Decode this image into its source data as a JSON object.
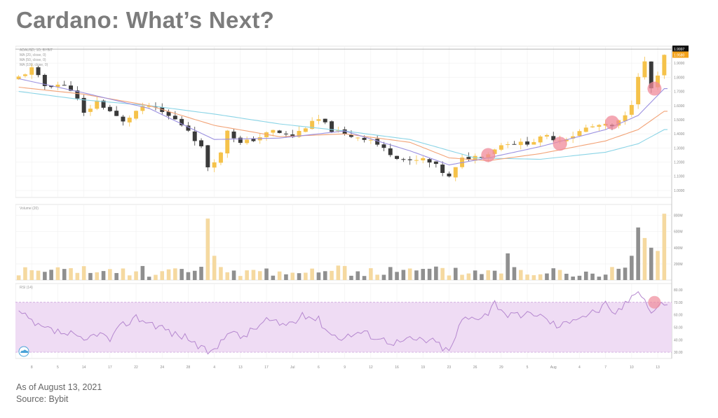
{
  "header": {
    "title": "Cardano: What’s Next?"
  },
  "footer": {
    "as_of": "As of August 13, 2021",
    "source": "Source: Bybit"
  },
  "colors": {
    "candle_up": "#f5c24a",
    "candle_down": "#3a3a3a",
    "ma_fast": "#9b90e0",
    "ma_mid": "#f2a377",
    "ma_slow": "#8ad4e6",
    "rsi_line": "#b587cf",
    "rsi_band": "#efdcf4",
    "highlight": "#f08a9a",
    "vol_up": "#f5d9a0",
    "vol_down": "#8f8f8f",
    "price_tag": "#111111",
    "price_tag_text": "#ffffff",
    "second_tag": "#f3a21b"
  },
  "chart_data": {
    "type": "candlestick",
    "price_panel": {
      "symbol_legend": "ADAUSD, 1D, BYBIT",
      "ma_legends": [
        "MA (20, close, 0)",
        "MA (50, close, 0)",
        "MA (100, close, 0)"
      ],
      "price_labels": [
        {
          "label": "1.9997",
          "value": 1.9997
        },
        {
          "label": "1.9580",
          "value": 1.958
        }
      ],
      "y_tick_values": [
        1.9,
        1.8,
        1.7,
        1.6,
        1.5,
        1.4,
        1.3,
        1.2,
        1.1,
        1.0
      ],
      "ylim": [
        0.95,
        2.02
      ],
      "candles": {
        "count": 100,
        "close_anchors": [
          [
            0,
            1.8
          ],
          [
            2,
            1.86
          ],
          [
            4,
            1.74
          ],
          [
            6,
            1.75
          ],
          [
            8,
            1.72
          ],
          [
            9,
            1.64
          ],
          [
            10,
            1.54
          ],
          [
            12,
            1.63
          ],
          [
            14,
            1.56
          ],
          [
            16,
            1.48
          ],
          [
            18,
            1.56
          ],
          [
            20,
            1.6
          ],
          [
            22,
            1.55
          ],
          [
            24,
            1.5
          ],
          [
            26,
            1.43
          ],
          [
            28,
            1.3
          ],
          [
            29,
            1.17
          ],
          [
            31,
            1.26
          ],
          [
            32,
            1.43
          ],
          [
            34,
            1.33
          ],
          [
            36,
            1.36
          ],
          [
            39,
            1.42
          ],
          [
            42,
            1.38
          ],
          [
            44,
            1.45
          ],
          [
            46,
            1.5
          ],
          [
            48,
            1.43
          ],
          [
            50,
            1.39
          ],
          [
            52,
            1.38
          ],
          [
            54,
            1.36
          ],
          [
            56,
            1.29
          ],
          [
            58,
            1.24
          ],
          [
            60,
            1.2
          ],
          [
            62,
            1.22
          ],
          [
            64,
            1.17
          ],
          [
            66,
            1.09
          ],
          [
            68,
            1.22
          ],
          [
            70,
            1.24
          ],
          [
            72,
            1.26
          ],
          [
            73,
            1.3
          ],
          [
            75,
            1.34
          ],
          [
            77,
            1.33
          ],
          [
            79,
            1.35
          ],
          [
            81,
            1.38
          ],
          [
            83,
            1.36
          ],
          [
            85,
            1.39
          ],
          [
            87,
            1.44
          ],
          [
            89,
            1.46
          ],
          [
            91,
            1.45
          ],
          [
            93,
            1.52
          ],
          [
            94,
            1.62
          ],
          [
            95,
            1.82
          ],
          [
            96,
            1.9
          ],
          [
            97,
            1.72
          ],
          [
            98,
            1.8
          ],
          [
            99,
            1.95
          ]
        ],
        "ma_fast_anchors": [
          [
            0,
            1.79
          ],
          [
            10,
            1.69
          ],
          [
            20,
            1.58
          ],
          [
            30,
            1.36
          ],
          [
            40,
            1.37
          ],
          [
            50,
            1.42
          ],
          [
            60,
            1.28
          ],
          [
            66,
            1.18
          ],
          [
            72,
            1.23
          ],
          [
            80,
            1.31
          ],
          [
            90,
            1.43
          ],
          [
            95,
            1.53
          ],
          [
            99,
            1.72
          ]
        ],
        "ma_mid_anchors": [
          [
            0,
            1.73
          ],
          [
            10,
            1.68
          ],
          [
            20,
            1.6
          ],
          [
            30,
            1.46
          ],
          [
            40,
            1.38
          ],
          [
            50,
            1.4
          ],
          [
            60,
            1.34
          ],
          [
            66,
            1.23
          ],
          [
            72,
            1.21
          ],
          [
            80,
            1.26
          ],
          [
            90,
            1.35
          ],
          [
            95,
            1.43
          ],
          [
            99,
            1.56
          ]
        ],
        "ma_slow_anchors": [
          [
            0,
            1.7
          ],
          [
            10,
            1.64
          ],
          [
            20,
            1.6
          ],
          [
            30,
            1.54
          ],
          [
            40,
            1.47
          ],
          [
            50,
            1.42
          ],
          [
            60,
            1.36
          ],
          [
            70,
            1.23
          ],
          [
            80,
            1.22
          ],
          [
            90,
            1.27
          ],
          [
            95,
            1.33
          ],
          [
            99,
            1.43
          ]
        ],
        "highlight_circles": [
          {
            "index": 72,
            "value": 1.25
          },
          {
            "index": 83,
            "value": 1.33
          },
          {
            "index": 91,
            "value": 1.48
          },
          {
            "index": 97.5,
            "value": 1.72
          }
        ]
      }
    },
    "volume_panel": {
      "legend": "Volume (20)",
      "y_tick_values": [
        800,
        600,
        400,
        200
      ],
      "ylim": [
        0,
        900
      ],
      "spikes": [
        [
          29,
          760
        ],
        [
          30,
          300
        ],
        [
          75,
          330
        ],
        [
          94,
          300
        ],
        [
          95,
          650
        ],
        [
          96,
          520
        ],
        [
          97,
          400
        ],
        [
          98,
          360
        ],
        [
          99,
          820
        ]
      ],
      "baseline_range": [
        40,
        180
      ]
    },
    "rsi_panel": {
      "legend": "RSI (14)",
      "y_tick_values": [
        80,
        70,
        60,
        50,
        40,
        30
      ],
      "ylim": [
        25,
        85
      ],
      "band": [
        30,
        70
      ],
      "anchors": [
        [
          0,
          62
        ],
        [
          3,
          50
        ],
        [
          6,
          46
        ],
        [
          8,
          44
        ],
        [
          10,
          38
        ],
        [
          12,
          46
        ],
        [
          14,
          40
        ],
        [
          16,
          52
        ],
        [
          18,
          58
        ],
        [
          20,
          54
        ],
        [
          22,
          50
        ],
        [
          24,
          44
        ],
        [
          26,
          42
        ],
        [
          28,
          32
        ],
        [
          30,
          30
        ],
        [
          32,
          48
        ],
        [
          34,
          42
        ],
        [
          36,
          48
        ],
        [
          38,
          56
        ],
        [
          40,
          52
        ],
        [
          42,
          54
        ],
        [
          44,
          60
        ],
        [
          46,
          56
        ],
        [
          48,
          44
        ],
        [
          50,
          42
        ],
        [
          52,
          46
        ],
        [
          54,
          44
        ],
        [
          56,
          40
        ],
        [
          58,
          38
        ],
        [
          60,
          40
        ],
        [
          62,
          40
        ],
        [
          64,
          38
        ],
        [
          66,
          30
        ],
        [
          68,
          56
        ],
        [
          70,
          58
        ],
        [
          72,
          62
        ],
        [
          73,
          70
        ],
        [
          75,
          60
        ],
        [
          77,
          58
        ],
        [
          79,
          62
        ],
        [
          81,
          56
        ],
        [
          83,
          50
        ],
        [
          85,
          58
        ],
        [
          87,
          60
        ],
        [
          89,
          64
        ],
        [
          90,
          68
        ],
        [
          91,
          60
        ],
        [
          93,
          68
        ],
        [
          94,
          75
        ],
        [
          95,
          82
        ],
        [
          96,
          72
        ],
        [
          97,
          62
        ],
        [
          98,
          66
        ],
        [
          99,
          70
        ]
      ],
      "highlight_circle": {
        "index": 97.5,
        "value": 70
      }
    },
    "x_tick_labels": [
      {
        "index": 2,
        "label": "8"
      },
      {
        "index": 6,
        "label": "5"
      },
      {
        "index": 10,
        "label": "14"
      },
      {
        "index": 14,
        "label": "17"
      },
      {
        "index": 18,
        "label": "22"
      },
      {
        "index": 22,
        "label": "24"
      },
      {
        "index": 26,
        "label": "28"
      },
      {
        "index": 30,
        "label": "4"
      },
      {
        "index": 34,
        "label": "13"
      },
      {
        "index": 38,
        "label": "17"
      },
      {
        "index": 42,
        "label": "Jul"
      },
      {
        "index": 46,
        "label": "6"
      },
      {
        "index": 50,
        "label": "9"
      },
      {
        "index": 54,
        "label": "12"
      },
      {
        "index": 58,
        "label": "16"
      },
      {
        "index": 62,
        "label": "19"
      },
      {
        "index": 66,
        "label": "23"
      },
      {
        "index": 70,
        "label": "26"
      },
      {
        "index": 74,
        "label": "29"
      },
      {
        "index": 78,
        "label": "5"
      },
      {
        "index": 82,
        "label": "Aug"
      },
      {
        "index": 86,
        "label": "4"
      },
      {
        "index": 90,
        "label": "7"
      },
      {
        "index": 94,
        "label": "10"
      },
      {
        "index": 98,
        "label": "13"
      }
    ]
  }
}
